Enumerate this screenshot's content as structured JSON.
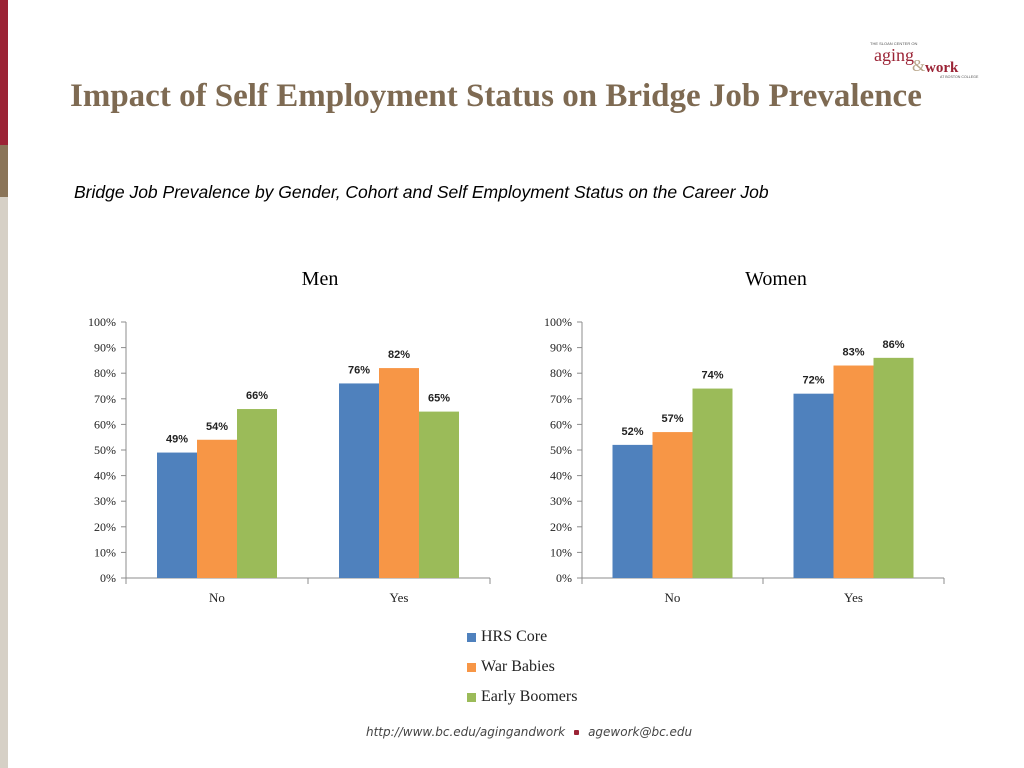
{
  "slide": {
    "title": "Impact of Self Employment Status on Bridge Job Prevalence",
    "subtitle": "Bridge Job Prevalence by Gender, Cohort and Self Employment Status on the Career Job"
  },
  "logo": {
    "top_text": "THE SLOAN CENTER ON",
    "word1": "aging",
    "amp": "&",
    "word2": "work",
    "bottom_text": "AT BOSTON COLLEGE",
    "brand_color": "#9b2335"
  },
  "footer": {
    "url": "http://www.bc.edu/agingandwork",
    "email": "agework@bc.edu"
  },
  "colors": {
    "accent_red": "#9b2335",
    "title_brown": "#7e6a52"
  },
  "legend": [
    {
      "label": "HRS Core",
      "color": "#4f81bd"
    },
    {
      "label": "War Babies",
      "color": "#f79646"
    },
    {
      "label": "Early Boomers",
      "color": "#9bbb59"
    }
  ],
  "chart_data": [
    {
      "type": "bar",
      "title": "Men",
      "categories": [
        "No",
        "Yes"
      ],
      "series": [
        {
          "name": "HRS Core",
          "values": [
            49,
            76
          ],
          "color": "#4f81bd"
        },
        {
          "name": "War Babies",
          "values": [
            54,
            82
          ],
          "color": "#f79646"
        },
        {
          "name": "Early Boomers",
          "values": [
            66,
            65
          ],
          "color": "#9bbb59"
        }
      ],
      "ylim": [
        0,
        100
      ],
      "yticks": [
        "0%",
        "10%",
        "20%",
        "30%",
        "40%",
        "50%",
        "60%",
        "70%",
        "80%",
        "90%",
        "100%"
      ],
      "data_labels": [
        [
          "49%",
          "76%"
        ],
        [
          "54%",
          "82%"
        ],
        [
          "66%",
          "65%"
        ]
      ],
      "grid": false,
      "legend": "bottom"
    },
    {
      "type": "bar",
      "title": "Women",
      "categories": [
        "No",
        "Yes"
      ],
      "series": [
        {
          "name": "HRS Core",
          "values": [
            52,
            72
          ],
          "color": "#4f81bd"
        },
        {
          "name": "War Babies",
          "values": [
            57,
            83
          ],
          "color": "#f79646"
        },
        {
          "name": "Early Boomers",
          "values": [
            74,
            86
          ],
          "color": "#9bbb59"
        }
      ],
      "ylim": [
        0,
        100
      ],
      "yticks": [
        "0%",
        "10%",
        "20%",
        "30%",
        "40%",
        "50%",
        "60%",
        "70%",
        "80%",
        "90%",
        "100%"
      ],
      "data_labels": [
        [
          "52%",
          "72%"
        ],
        [
          "57%",
          "83%"
        ],
        [
          "74%",
          "86%"
        ]
      ],
      "grid": false,
      "legend": "bottom"
    }
  ]
}
